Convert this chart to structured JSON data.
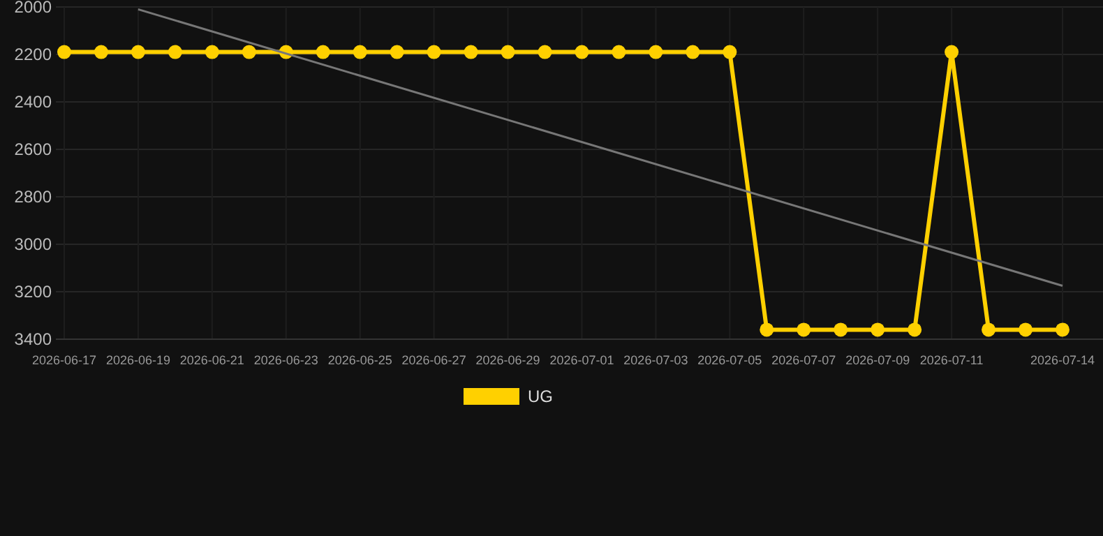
{
  "chart_data": {
    "type": "line",
    "x": [
      "2026-06-17",
      "2026-06-18",
      "2026-06-19",
      "2026-06-20",
      "2026-06-21",
      "2026-06-22",
      "2026-06-23",
      "2026-06-24",
      "2026-06-25",
      "2026-06-26",
      "2026-06-27",
      "2026-06-28",
      "2026-06-29",
      "2026-06-30",
      "2026-07-01",
      "2026-07-02",
      "2026-07-03",
      "2026-07-04",
      "2026-07-05",
      "2026-07-06",
      "2026-07-07",
      "2026-07-08",
      "2026-07-09",
      "2026-07-10",
      "2026-07-11",
      "2026-07-12",
      "2026-07-13",
      "2026-07-14"
    ],
    "series": [
      {
        "name": "UG",
        "color": "#ffd000",
        "marker": "circle",
        "values": [
          2190,
          2190,
          2190,
          2190,
          2190,
          2190,
          2190,
          2190,
          2190,
          2190,
          2190,
          2190,
          2190,
          2190,
          2190,
          2190,
          2190,
          2190,
          2190,
          3360,
          3360,
          3360,
          3360,
          3360,
          2190,
          3360,
          3360,
          3360
        ]
      },
      {
        "type": "line",
        "color": "#777777",
        "marker": "none",
        "x": [
          "2026-06-19",
          "2026-07-14"
        ],
        "values": [
          2010,
          3175
        ]
      }
    ],
    "ylim": [
      3400,
      2000
    ],
    "yticks": [
      2000,
      2200,
      2400,
      2600,
      2800,
      3000,
      3200,
      3400
    ],
    "xlim": [
      "2026-06-17",
      "2026-07-14"
    ],
    "xticks": [
      "2026-06-17",
      "2026-06-19",
      "2026-06-21",
      "2026-06-23",
      "2026-06-25",
      "2026-06-27",
      "2026-06-29",
      "2026-07-01",
      "2026-07-03",
      "2026-07-05",
      "2026-07-07",
      "2026-07-09",
      "2026-07-11",
      "2026-07-14"
    ],
    "grid": true,
    "legend": "bottom",
    "line_style": "solid"
  }
}
